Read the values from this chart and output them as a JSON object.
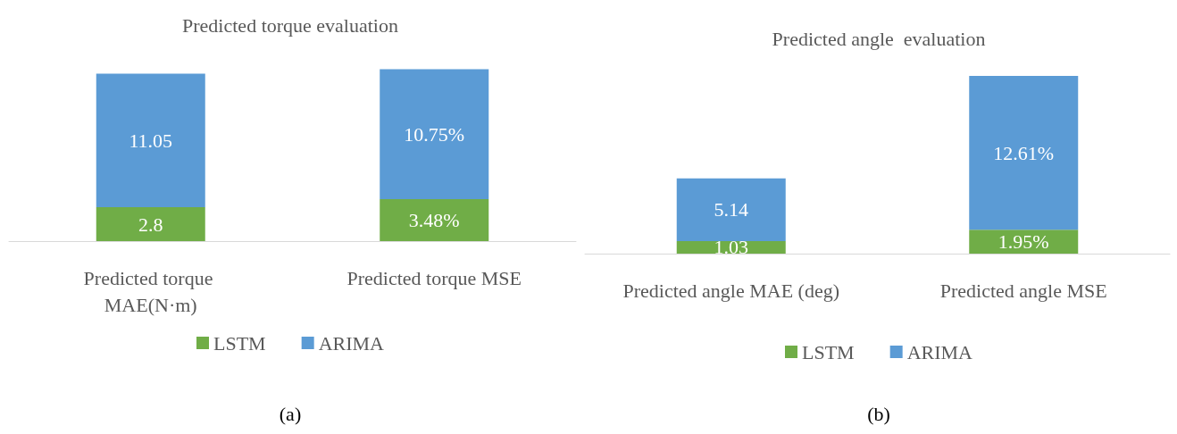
{
  "chart_data": [
    {
      "type": "bar",
      "title": "Predicted torque evaluation",
      "categories": [
        "Predicted torque MAE(N·m)",
        "Predicted torque MSE"
      ],
      "stacked": true,
      "tick_labels": "x",
      "legend": "bottom",
      "grid": false,
      "annotations": [
        "(a)"
      ],
      "series": [
        {
          "name": "LSTM",
          "color": "#70ad47",
          "values": [
            2.8,
            3.48
          ],
          "value_labels": [
            "2.8",
            "3.48%"
          ]
        },
        {
          "name": "ARIMA",
          "color": "#5b9bd5",
          "values": [
            11.05,
            10.75
          ],
          "value_labels": [
            "11.05",
            "10.75%"
          ]
        }
      ]
    },
    {
      "type": "bar",
      "title": "Predicted angle  evaluation",
      "categories": [
        "Predicted angle MAE (deg)",
        "Predicted angle MSE"
      ],
      "stacked": true,
      "tick_labels": "x",
      "legend": "bottom",
      "grid": false,
      "annotations": [
        "(b)"
      ],
      "series": [
        {
          "name": "LSTM",
          "color": "#70ad47",
          "values": [
            1.03,
            1.95
          ],
          "value_labels": [
            "1.03",
            "1.95%"
          ]
        },
        {
          "name": "ARIMA",
          "color": "#5b9bd5",
          "values": [
            5.14,
            12.61
          ],
          "value_labels": [
            "5.14",
            "12.61%"
          ]
        }
      ]
    }
  ]
}
